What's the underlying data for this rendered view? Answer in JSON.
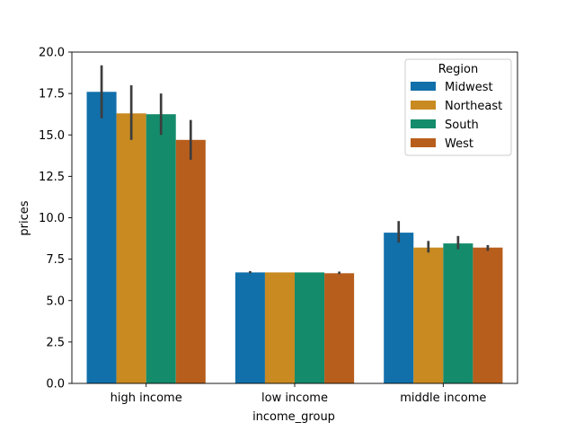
{
  "chart_data": {
    "type": "bar",
    "xlabel": "income_group",
    "ylabel": "prices",
    "categories": [
      "high income",
      "low income",
      "middle income"
    ],
    "ylim": [
      0,
      20
    ],
    "yticks": [
      "0.0",
      "2.5",
      "5.0",
      "7.5",
      "10.0",
      "12.5",
      "15.0",
      "17.5",
      "20.0"
    ],
    "legend": {
      "title": "Region",
      "placement": "top-right"
    },
    "grid": false,
    "series": [
      {
        "name": "Midwest",
        "color": "#1170aa",
        "values": [
          17.6,
          6.7,
          9.1
        ],
        "ci": [
          [
            16.0,
            19.2
          ],
          [
            6.65,
            6.78
          ],
          [
            8.5,
            9.8
          ]
        ]
      },
      {
        "name": "Northeast",
        "color": "#c88a21",
        "values": [
          16.3,
          6.7,
          8.2
        ],
        "ci": [
          [
            14.7,
            18.0
          ],
          [
            6.7,
            6.7
          ],
          [
            7.9,
            8.6
          ]
        ]
      },
      {
        "name": "South",
        "color": "#148c6c",
        "values": [
          16.25,
          6.7,
          8.45
        ],
        "ci": [
          [
            15.0,
            17.5
          ],
          [
            6.7,
            6.7
          ],
          [
            8.1,
            8.9
          ]
        ]
      },
      {
        "name": "West",
        "color": "#b85e1c",
        "values": [
          14.7,
          6.65,
          8.2
        ],
        "ci": [
          [
            13.5,
            15.9
          ],
          [
            6.6,
            6.75
          ],
          [
            8.0,
            8.35
          ]
        ]
      }
    ]
  }
}
